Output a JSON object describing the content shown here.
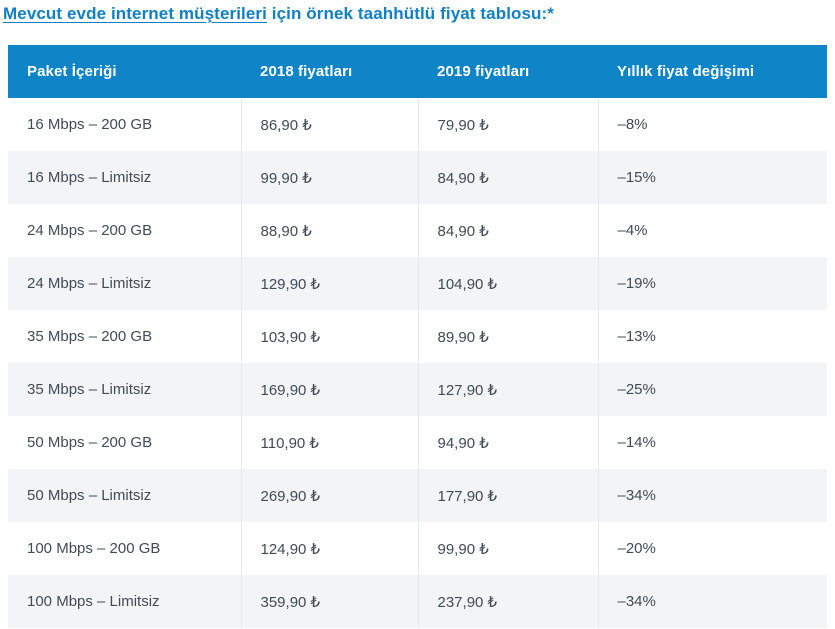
{
  "page": {
    "title_link": "Mevcut evde internet müşterileri",
    "title_rest": " için örnek taahhütlü fiyat tablosu:*"
  },
  "table": {
    "headers": [
      "Paket İçeriği",
      "2018 fiyatları",
      "2019 fiyatları",
      "Yıllık fiyat değişimi"
    ],
    "rows": [
      [
        "16 Mbps – 200 GB",
        "86,90 ₺",
        "79,90 ₺",
        "–8%"
      ],
      [
        "16 Mbps – Limitsiz",
        "99,90 ₺",
        "84,90 ₺",
        "–15%"
      ],
      [
        "24 Mbps – 200 GB",
        "88,90 ₺",
        "84,90 ₺",
        "–4%"
      ],
      [
        "24 Mbps – Limitsiz",
        "129,90 ₺",
        "104,90 ₺",
        "–19%"
      ],
      [
        "35 Mbps – 200 GB",
        "103,90 ₺",
        "89,90 ₺",
        "–13%"
      ],
      [
        "35 Mbps – Limitsiz",
        "169,90 ₺",
        "127,90 ₺",
        "–25%"
      ],
      [
        "50 Mbps – 200 GB",
        "110,90 ₺",
        "94,90 ₺",
        "–14%"
      ],
      [
        "50 Mbps – Limitsiz",
        "269,90 ₺",
        "177,90 ₺",
        "–34%"
      ],
      [
        "100 Mbps – 200 GB",
        "124,90 ₺",
        "99,90 ₺",
        "–20%"
      ],
      [
        "100 Mbps – Limitsiz",
        "359,90 ₺",
        "237,90 ₺",
        "–34%"
      ]
    ]
  },
  "colors": {
    "header_bg": "#0f85c8",
    "title_blue": "#1080c6",
    "row_alt_bg": "#f3f4f5",
    "cell_text": "#414b56",
    "separator": "#e7e9ea"
  },
  "chart_data": {
    "type": "table",
    "title": "Mevcut evde internet müşterileri için örnek taahhütlü fiyat tablosu",
    "columns": [
      "Paket İçeriği",
      "2018 fiyatları",
      "2019 fiyatları",
      "Yıllık fiyat değişimi"
    ],
    "rows": [
      [
        "16 Mbps – 200 GB",
        "86,90 ₺",
        "79,90 ₺",
        "–8%"
      ],
      [
        "16 Mbps – Limitsiz",
        "99,90 ₺",
        "84,90 ₺",
        "–15%"
      ],
      [
        "24 Mbps – 200 GB",
        "88,90 ₺",
        "84,90 ₺",
        "–4%"
      ],
      [
        "24 Mbps – Limitsiz",
        "129,90 ₺",
        "104,90 ₺",
        "–19%"
      ],
      [
        "35 Mbps – 200 GB",
        "103,90 ₺",
        "89,90 ₺",
        "–13%"
      ],
      [
        "35 Mbps – Limitsiz",
        "169,90 ₺",
        "127,90 ₺",
        "–25%"
      ],
      [
        "50 Mbps – 200 GB",
        "110,90 ₺",
        "94,90 ₺",
        "–14%"
      ],
      [
        "50 Mbps – Limitsiz",
        "269,90 ₺",
        "177,90 ₺",
        "–34%"
      ],
      [
        "100 Mbps – 200 GB",
        "124,90 ₺",
        "99,90 ₺",
        "–20%"
      ],
      [
        "100 Mbps – Limitsiz",
        "359,90 ₺",
        "237,90 ₺",
        "–34%"
      ]
    ]
  }
}
